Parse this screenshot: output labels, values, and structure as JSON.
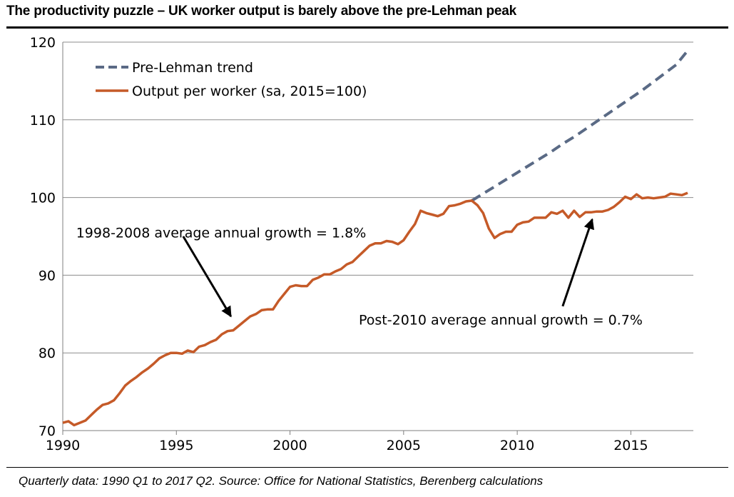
{
  "title": "The productivity puzzle – UK worker output is barely above the pre-Lehman peak",
  "footnote": "Quarterly data: 1990 Q1 to 2017 Q2. Source: Office for National Statistics, Berenberg calculations",
  "chart_data": {
    "type": "line",
    "title": "The productivity puzzle – UK worker output is barely above the pre-Lehman peak",
    "xlabel": "",
    "ylabel": "",
    "xlim": [
      1990,
      2017.75
    ],
    "ylim": [
      70,
      120
    ],
    "x_ticks": [
      "1990",
      "1995",
      "2000",
      "2005",
      "2010",
      "2015"
    ],
    "y_ticks": [
      "70",
      "80",
      "90",
      "100",
      "110",
      "120"
    ],
    "grid": "horizontal",
    "legend_position": "top-left",
    "series": [
      {
        "name": "Pre-Lehman trend",
        "color": "#5a6a85",
        "style": "dashed",
        "x": [
          2008.0,
          2008.5,
          2009.0,
          2009.5,
          2010.0,
          2010.5,
          2011.0,
          2011.5,
          2012.0,
          2012.5,
          2013.0,
          2013.5,
          2014.0,
          2014.5,
          2015.0,
          2015.5,
          2016.0,
          2016.5,
          2017.0,
          2017.5
        ],
        "y": [
          99.6,
          100.5,
          101.4,
          102.3,
          103.2,
          104.1,
          105.0,
          105.9,
          106.9,
          107.8,
          108.8,
          109.8,
          110.8,
          111.8,
          112.8,
          113.8,
          114.9,
          116.0,
          117.1,
          118.9
        ]
      },
      {
        "name": "Output per worker (sa, 2015=100)",
        "color": "#c55a28",
        "style": "solid",
        "x": [
          1990.0,
          1990.25,
          1990.5,
          1990.75,
          1991.0,
          1991.25,
          1991.5,
          1991.75,
          1992.0,
          1992.25,
          1992.5,
          1992.75,
          1993.0,
          1993.25,
          1993.5,
          1993.75,
          1994.0,
          1994.25,
          1994.5,
          1994.75,
          1995.0,
          1995.25,
          1995.5,
          1995.75,
          1996.0,
          1996.25,
          1996.5,
          1996.75,
          1997.0,
          1997.25,
          1997.5,
          1997.75,
          1998.0,
          1998.25,
          1998.5,
          1998.75,
          1999.0,
          1999.25,
          1999.5,
          1999.75,
          2000.0,
          2000.25,
          2000.5,
          2000.75,
          2001.0,
          2001.25,
          2001.5,
          2001.75,
          2002.0,
          2002.25,
          2002.5,
          2002.75,
          2003.0,
          2003.25,
          2003.5,
          2003.75,
          2004.0,
          2004.25,
          2004.5,
          2004.75,
          2005.0,
          2005.25,
          2005.5,
          2005.75,
          2006.0,
          2006.25,
          2006.5,
          2006.75,
          2007.0,
          2007.25,
          2007.5,
          2007.75,
          2008.0,
          2008.25,
          2008.5,
          2008.75,
          2009.0,
          2009.25,
          2009.5,
          2009.75,
          2010.0,
          2010.25,
          2010.5,
          2010.75,
          2011.0,
          2011.25,
          2011.5,
          2011.75,
          2012.0,
          2012.25,
          2012.5,
          2012.75,
          2013.0,
          2013.25,
          2013.5,
          2013.75,
          2014.0,
          2014.25,
          2014.5,
          2014.75,
          2015.0,
          2015.25,
          2015.5,
          2015.75,
          2016.0,
          2016.25,
          2016.5,
          2016.75,
          2017.0,
          2017.25,
          2017.5
        ],
        "y": [
          71.0,
          71.2,
          70.7,
          71.0,
          71.3,
          72.0,
          72.7,
          73.3,
          73.5,
          73.9,
          74.8,
          75.8,
          76.4,
          76.9,
          77.5,
          78.0,
          78.6,
          79.3,
          79.7,
          80.0,
          80.0,
          79.9,
          80.3,
          80.1,
          80.8,
          81.0,
          81.4,
          81.7,
          82.4,
          82.8,
          82.9,
          83.5,
          84.1,
          84.7,
          85.0,
          85.5,
          85.6,
          85.6,
          86.7,
          87.6,
          88.5,
          88.7,
          88.6,
          88.6,
          89.4,
          89.7,
          90.1,
          90.1,
          90.5,
          90.8,
          91.4,
          91.7,
          92.4,
          93.1,
          93.8,
          94.1,
          94.1,
          94.4,
          94.3,
          94.0,
          94.5,
          95.6,
          96.6,
          98.3,
          98.0,
          97.8,
          97.6,
          97.9,
          98.9,
          99.0,
          99.2,
          99.5,
          99.6,
          99.0,
          98.0,
          96.0,
          94.8,
          95.3,
          95.6,
          95.6,
          96.5,
          96.8,
          96.9,
          97.4,
          97.4,
          97.4,
          98.1,
          97.9,
          98.3,
          97.4,
          98.3,
          97.5,
          98.1,
          98.1,
          98.2,
          98.2,
          98.4,
          98.8,
          99.4,
          100.1,
          99.8,
          100.4,
          99.9,
          100.0,
          99.9,
          100.0,
          100.1,
          100.5,
          100.4,
          100.3,
          100.6
        ]
      }
    ],
    "annotations": [
      {
        "text": "1998-2008 average annual growth = 1.8%",
        "x": 1996.0,
        "y": 95.5,
        "arrow_from": [
          1995.3,
          95.0
        ],
        "arrow_to": [
          1997.4,
          84.7
        ]
      },
      {
        "text": "Post-2010 average annual growth = 0.7%",
        "x": 2012.5,
        "y": 84.3,
        "arrow_from": [
          2012.0,
          86.0
        ],
        "arrow_to": [
          2013.3,
          97.2
        ]
      }
    ]
  }
}
